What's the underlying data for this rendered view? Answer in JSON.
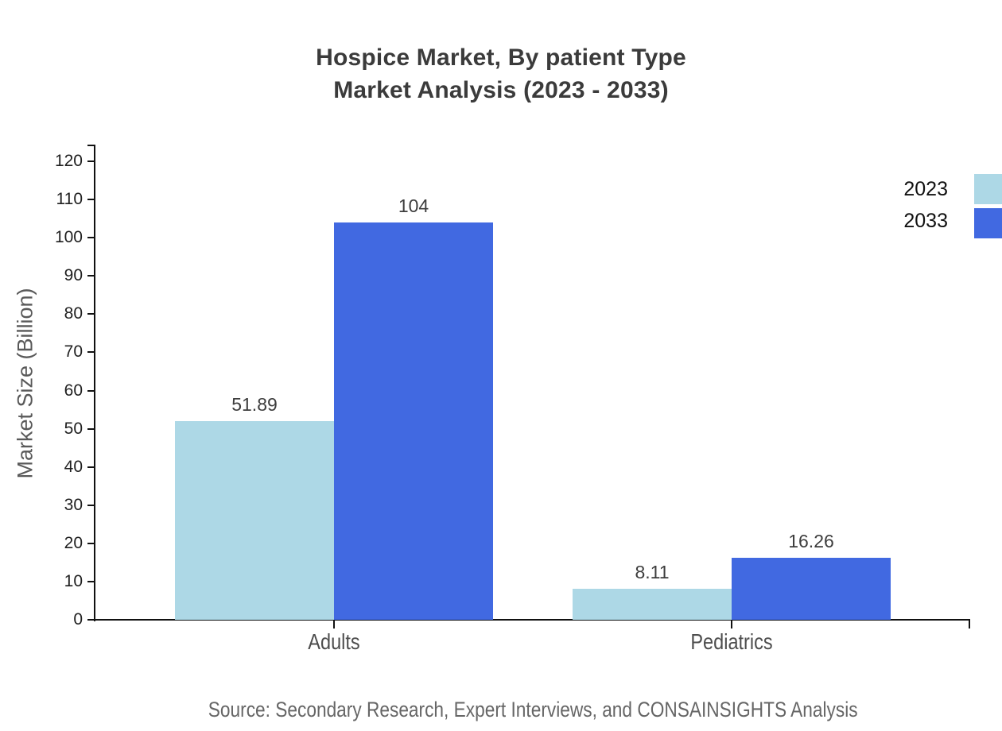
{
  "title": {
    "line1": "Hospice Market, By patient Type",
    "line2": "Market Analysis (2023 - 2033)"
  },
  "source": "Source: Secondary Research, Expert Interviews, and CONSAINSIGHTS Analysis",
  "chart_data": {
    "type": "bar",
    "title": "Hospice Market, By patient Type Market Analysis (2023 - 2033)",
    "categories": [
      "Adults",
      "Pediatrics"
    ],
    "series": [
      {
        "name": "2023",
        "color": "#ADD8E6",
        "values": [
          51.89,
          8.11
        ]
      },
      {
        "name": "2033",
        "color": "#4169E1",
        "values": [
          104,
          16.26
        ]
      }
    ],
    "xlabel": "",
    "ylabel": "Market Size (Billion)",
    "ylim": [
      0,
      120
    ],
    "yticks": [
      0,
      10,
      20,
      30,
      40,
      50,
      60,
      70,
      80,
      90,
      100,
      110,
      120
    ],
    "grid": false,
    "legend_position": "top-right",
    "value_labels_shown": true
  },
  "colors": {
    "series_2023": "#ADD8E6",
    "series_2033": "#4169E1",
    "axis": "#111111",
    "title_text": "#3b3b3b",
    "muted_text": "#666666"
  }
}
